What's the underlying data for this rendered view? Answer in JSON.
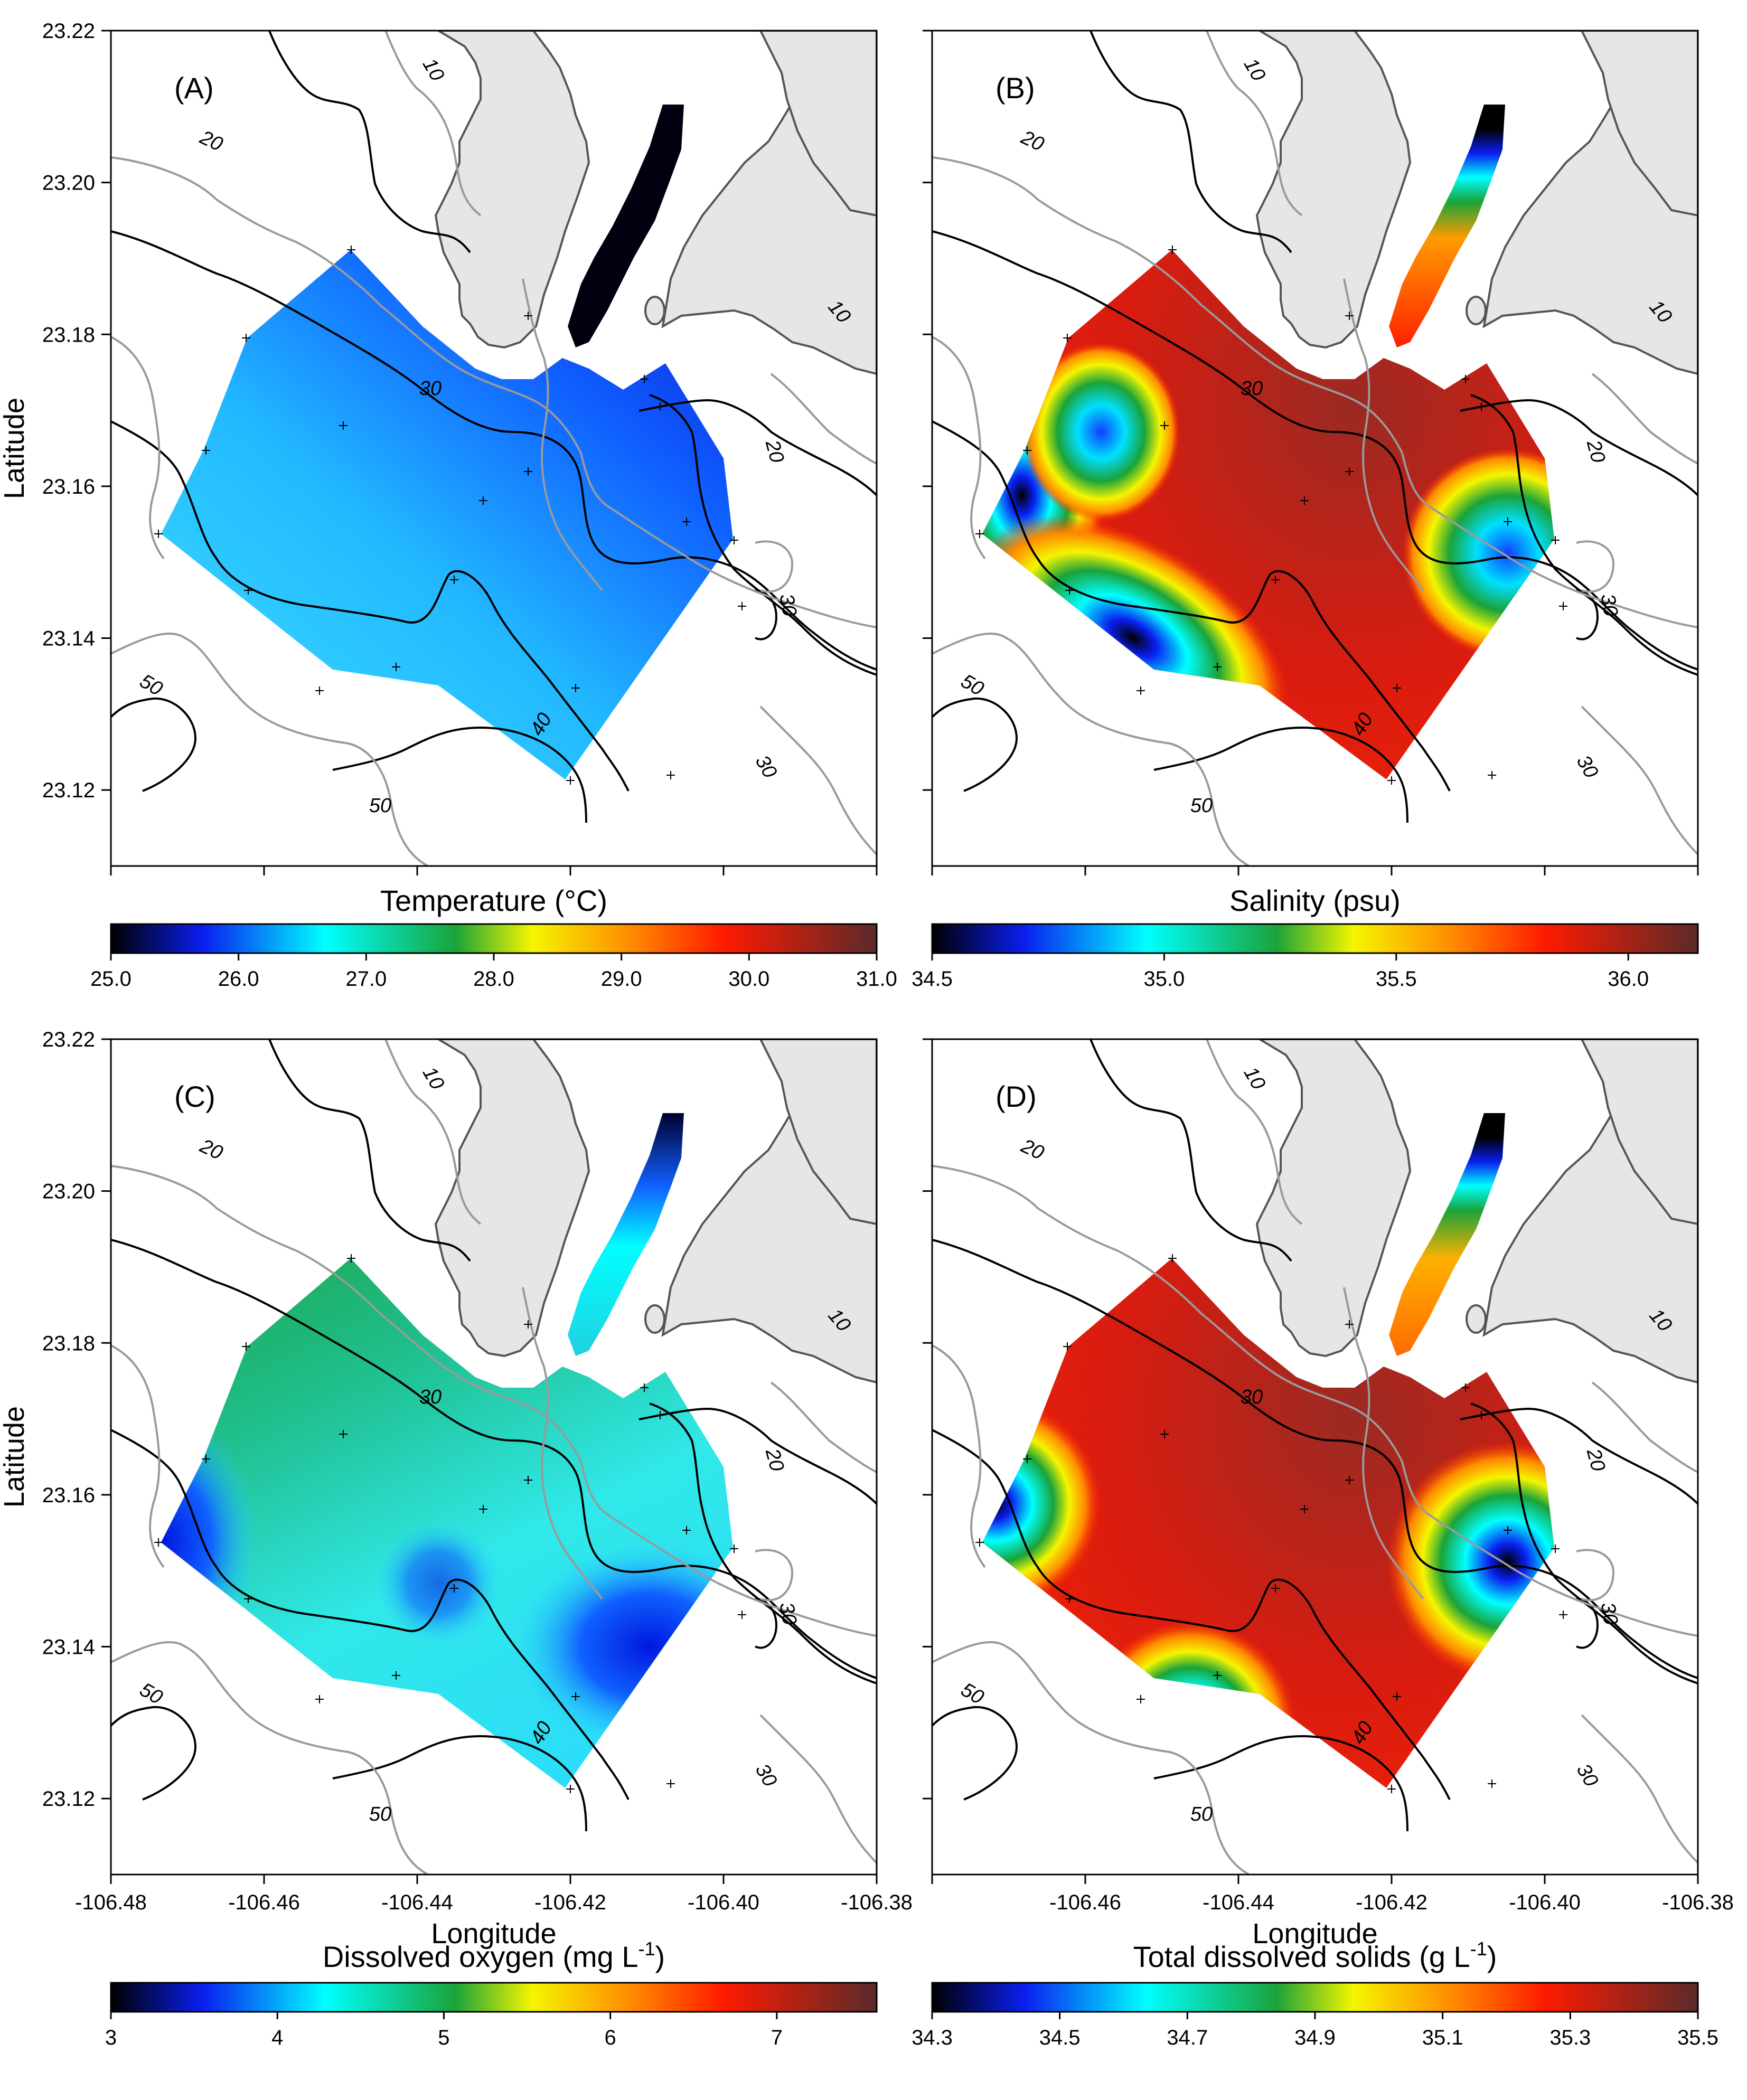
{
  "chart_data": [
    {
      "type": "heatmap",
      "panel_label": "(A)",
      "variable": "Temperature (°C)",
      "colorbar": {
        "title": "Temperature (°C)",
        "ticks": [
          "25.0",
          "26.0",
          "27.0",
          "28.0",
          "29.0",
          "30.0",
          "31.0"
        ],
        "range": [
          25.0,
          31.0
        ]
      },
      "xlim": [
        -106.48,
        -106.38
      ],
      "ylim": [
        23.11,
        23.22
      ],
      "x_ticks": [
        "-106.48",
        "-106.46",
        "-106.44",
        "-106.42",
        "-106.40",
        "-106.38"
      ],
      "y_ticks": [
        "23.12",
        "23.14",
        "23.16",
        "23.18",
        "23.20",
        "23.22"
      ],
      "ylabel": "Latitude",
      "field_description_values": {
        "northeast_min": 25.0,
        "southwest_max": 27.0,
        "channel": 25.0
      }
    },
    {
      "type": "heatmap",
      "panel_label": "(B)",
      "variable": "Salinity (psu)",
      "colorbar": {
        "title": "Salinity (psu)",
        "ticks": [
          "34.5",
          "35.0",
          "35.5",
          "36.0"
        ],
        "range": [
          34.5,
          36.15
        ]
      },
      "xlim": [
        -106.48,
        -106.38
      ],
      "ylim": [
        23.11,
        23.22
      ],
      "field_description_values": {
        "background": 36.0,
        "low_west": 34.5,
        "low_southwest": 34.5,
        "low_east": 34.8
      }
    },
    {
      "type": "heatmap",
      "panel_label": "(C)",
      "variable": "Dissolved oxygen (mg L-1)",
      "colorbar": {
        "title": "Dissolved oxygen (mg L",
        "title_sup": "-1",
        "title_end": ")",
        "ticks": [
          "3",
          "4",
          "5",
          "6",
          "7"
        ],
        "range": [
          3.0,
          7.6
        ]
      },
      "xlim": [
        -106.48,
        -106.38
      ],
      "ylim": [
        23.11,
        23.22
      ],
      "x_ticks": [
        "-106.48",
        "-106.46",
        "-106.44",
        "-106.42",
        "-106.40",
        "-106.38"
      ],
      "y_ticks": [
        "23.12",
        "23.14",
        "23.16",
        "23.18",
        "23.20",
        "23.22"
      ],
      "xlabel": "Longitude",
      "ylabel": "Latitude"
    },
    {
      "type": "heatmap",
      "panel_label": "(D)",
      "variable": "Total dissolved solids (g L-1)",
      "colorbar": {
        "title": "Total dissolved solids (g L",
        "title_sup": "-1",
        "title_end": ")",
        "ticks": [
          "34.3",
          "34.5",
          "34.7",
          "34.9",
          "35.1",
          "35.3",
          "35.5"
        ],
        "range": [
          34.3,
          35.5
        ]
      },
      "xlim": [
        -106.48,
        -106.38
      ],
      "ylim": [
        23.11,
        23.22
      ],
      "x_ticks": [
        "-106.46",
        "-106.44",
        "-106.42",
        "-106.40",
        "-106.38"
      ],
      "xlabel": "Longitude"
    }
  ],
  "bathymetry_labels": [
    "10",
    "20",
    "30",
    "40",
    "50",
    "10",
    "20",
    "30",
    "40",
    "50"
  ],
  "colors": {
    "land": "#e6e6e6",
    "coast": "#555555",
    "contour_black": "#000000",
    "contour_grey": "#9a9a9a"
  }
}
